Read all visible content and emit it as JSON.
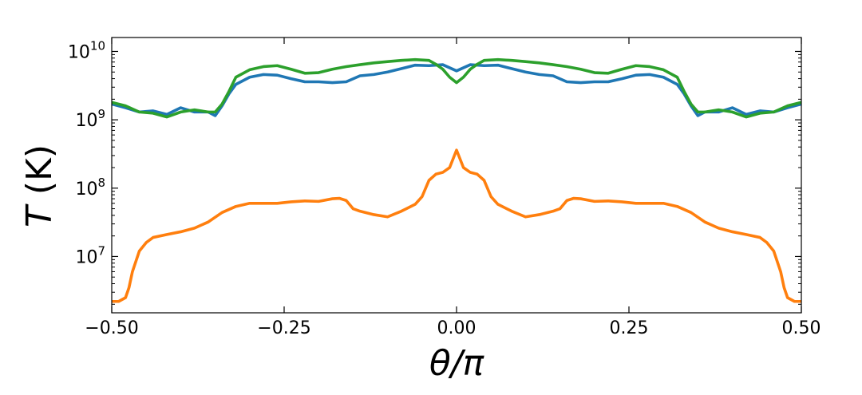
{
  "chart_data": {
    "type": "line",
    "title": "",
    "xlabel": "θ/π",
    "ylabel": "T (K)",
    "ylabel_italic_part": "T",
    "ylabel_unit_part": " (K)",
    "xlim": [
      -0.5,
      0.5
    ],
    "ylim": [
      1500000.0,
      16000000000.0
    ],
    "yscale": "log",
    "grid": false,
    "legend": "none",
    "x_ticks": [
      {
        "value": -0.5,
        "label": "−0.50"
      },
      {
        "value": -0.25,
        "label": "−0.25"
      },
      {
        "value": 0.0,
        "label": "0.00"
      },
      {
        "value": 0.25,
        "label": "0.25"
      },
      {
        "value": 0.5,
        "label": "0.50"
      }
    ],
    "y_ticks": [
      {
        "value": 10000000.0,
        "base": "10",
        "exp": "7"
      },
      {
        "value": 100000000.0,
        "base": "10",
        "exp": "8"
      },
      {
        "value": 1000000000.0,
        "base": "10",
        "exp": "9"
      },
      {
        "value": 10000000000.0,
        "base": "10",
        "exp": "10"
      }
    ],
    "series": [
      {
        "color": "#1f77b4",
        "x": [
          -0.5,
          -0.48,
          -0.46,
          -0.44,
          -0.42,
          -0.4,
          -0.38,
          -0.36,
          -0.35,
          -0.34,
          -0.33,
          -0.32,
          -0.3,
          -0.28,
          -0.26,
          -0.24,
          -0.22,
          -0.2,
          -0.18,
          -0.16,
          -0.14,
          -0.12,
          -0.1,
          -0.08,
          -0.06,
          -0.04,
          -0.02,
          0.0,
          0.02,
          0.04,
          0.06,
          0.08,
          0.1,
          0.12,
          0.14,
          0.16,
          0.18,
          0.2,
          0.22,
          0.24,
          0.26,
          0.28,
          0.3,
          0.32,
          0.33,
          0.34,
          0.35,
          0.36,
          0.38,
          0.4,
          0.42,
          0.44,
          0.46,
          0.48,
          0.5
        ],
        "y": [
          1700000000.0,
          1500000000.0,
          1300000000.0,
          1350000000.0,
          1200000000.0,
          1500000000.0,
          1300000000.0,
          1300000000.0,
          1150000000.0,
          1600000000.0,
          2400000000.0,
          3300000000.0,
          4200000000.0,
          4600000000.0,
          4500000000.0,
          4000000000.0,
          3600000000.0,
          3600000000.0,
          3500000000.0,
          3600000000.0,
          4400000000.0,
          4600000000.0,
          5000000000.0,
          5600000000.0,
          6300000000.0,
          6200000000.0,
          6400000000.0,
          5200000000.0,
          6400000000.0,
          6200000000.0,
          6300000000.0,
          5600000000.0,
          5000000000.0,
          4600000000.0,
          4400000000.0,
          3600000000.0,
          3500000000.0,
          3600000000.0,
          3600000000.0,
          4000000000.0,
          4500000000.0,
          4600000000.0,
          4200000000.0,
          3300000000.0,
          2400000000.0,
          1600000000.0,
          1150000000.0,
          1300000000.0,
          1300000000.0,
          1500000000.0,
          1200000000.0,
          1350000000.0,
          1300000000.0,
          1500000000.0,
          1700000000.0
        ]
      },
      {
        "color": "#ff7f0e",
        "x": [
          -0.5,
          -0.49,
          -0.48,
          -0.475,
          -0.47,
          -0.46,
          -0.45,
          -0.44,
          -0.42,
          -0.4,
          -0.38,
          -0.36,
          -0.34,
          -0.32,
          -0.3,
          -0.28,
          -0.26,
          -0.24,
          -0.22,
          -0.2,
          -0.18,
          -0.17,
          -0.16,
          -0.15,
          -0.14,
          -0.12,
          -0.1,
          -0.08,
          -0.06,
          -0.05,
          -0.04,
          -0.03,
          -0.02,
          -0.01,
          0.0,
          0.01,
          0.02,
          0.03,
          0.04,
          0.05,
          0.06,
          0.08,
          0.1,
          0.12,
          0.14,
          0.15,
          0.16,
          0.17,
          0.18,
          0.2,
          0.22,
          0.24,
          0.26,
          0.28,
          0.3,
          0.32,
          0.34,
          0.36,
          0.38,
          0.4,
          0.42,
          0.44,
          0.45,
          0.46,
          0.47,
          0.475,
          0.48,
          0.49,
          0.5
        ],
        "y": [
          2200000.0,
          2200000.0,
          2500000.0,
          3500000.0,
          6000000.0,
          12000000.0,
          16000000.0,
          19000000.0,
          21000000.0,
          23000000.0,
          26000000.0,
          32000000.0,
          44000000.0,
          54000000.0,
          60000000.0,
          60000000.0,
          60000000.0,
          63000000.0,
          65000000.0,
          64000000.0,
          70000000.0,
          71000000.0,
          66000000.0,
          50000000.0,
          46000000.0,
          41000000.0,
          38000000.0,
          46000000.0,
          58000000.0,
          75000000.0,
          130000000.0,
          160000000.0,
          170000000.0,
          200000000.0,
          360000000.0,
          200000000.0,
          170000000.0,
          160000000.0,
          130000000.0,
          75000000.0,
          58000000.0,
          46000000.0,
          38000000.0,
          41000000.0,
          46000000.0,
          50000000.0,
          66000000.0,
          71000000.0,
          70000000.0,
          64000000.0,
          65000000.0,
          63000000.0,
          60000000.0,
          60000000.0,
          60000000.0,
          54000000.0,
          44000000.0,
          32000000.0,
          26000000.0,
          23000000.0,
          21000000.0,
          19000000.0,
          16000000.0,
          12000000.0,
          6000000.0,
          3500000.0,
          2500000.0,
          2200000.0,
          2200000.0
        ]
      },
      {
        "color": "#2ca02c",
        "x": [
          -0.5,
          -0.48,
          -0.46,
          -0.44,
          -0.42,
          -0.4,
          -0.38,
          -0.36,
          -0.35,
          -0.34,
          -0.33,
          -0.32,
          -0.3,
          -0.28,
          -0.26,
          -0.24,
          -0.22,
          -0.2,
          -0.18,
          -0.16,
          -0.14,
          -0.12,
          -0.1,
          -0.08,
          -0.06,
          -0.04,
          -0.03,
          -0.02,
          -0.01,
          0.0,
          0.01,
          0.02,
          0.03,
          0.04,
          0.06,
          0.08,
          0.1,
          0.12,
          0.14,
          0.16,
          0.18,
          0.2,
          0.22,
          0.24,
          0.26,
          0.28,
          0.3,
          0.32,
          0.33,
          0.34,
          0.35,
          0.36,
          0.38,
          0.4,
          0.42,
          0.44,
          0.46,
          0.48,
          0.5
        ],
        "y": [
          1800000000.0,
          1600000000.0,
          1300000000.0,
          1250000000.0,
          1100000000.0,
          1300000000.0,
          1400000000.0,
          1300000000.0,
          1300000000.0,
          1700000000.0,
          2600000000.0,
          4200000000.0,
          5400000000.0,
          6000000000.0,
          6200000000.0,
          5500000000.0,
          4800000000.0,
          4900000000.0,
          5500000000.0,
          6000000000.0,
          6400000000.0,
          6800000000.0,
          7100000000.0,
          7400000000.0,
          7600000000.0,
          7400000000.0,
          6500000000.0,
          5500000000.0,
          4200000000.0,
          3500000000.0,
          4200000000.0,
          5500000000.0,
          6500000000.0,
          7400000000.0,
          7600000000.0,
          7400000000.0,
          7100000000.0,
          6800000000.0,
          6400000000.0,
          6000000000.0,
          5500000000.0,
          4900000000.0,
          4800000000.0,
          5500000000.0,
          6200000000.0,
          6000000000.0,
          5400000000.0,
          4200000000.0,
          2600000000.0,
          1700000000.0,
          1300000000.0,
          1300000000.0,
          1400000000.0,
          1300000000.0,
          1100000000.0,
          1250000000.0,
          1300000000.0,
          1600000000.0,
          1800000000.0
        ]
      }
    ]
  }
}
